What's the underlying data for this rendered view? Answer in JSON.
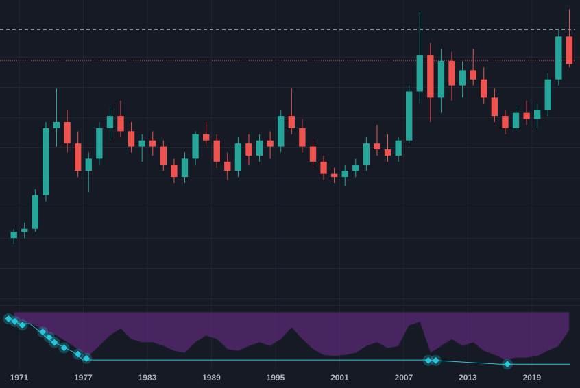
{
  "chart_data": [
    {
      "type": "candlestick",
      "x": [
        1970.5,
        1971.5,
        1972.5,
        1973.5,
        1974.5,
        1975.5,
        1976.5,
        1977.5,
        1978.5,
        1979.5,
        1980.5,
        1981.5,
        1982.5,
        1983.5,
        1984.5,
        1985.5,
        1986.5,
        1987.5,
        1988.5,
        1989.5,
        1990.5,
        1991.5,
        1992.5,
        1993.5,
        1994.5,
        1995.5,
        1996.5,
        1997.5,
        1998.5,
        1999.5,
        2000.5,
        2001.5,
        2002.5,
        2003.5,
        2004.5,
        2005.5,
        2006.5,
        2007.5,
        2008.5,
        2009.5,
        2010.5,
        2011.5,
        2012.5,
        2013.5,
        2014.5,
        2015.5,
        2016.5,
        2017.5,
        2018.5,
        2019.5,
        2020.5,
        2021.5,
        2022.5
      ],
      "open": [
        22,
        24,
        25,
        36,
        58,
        60,
        53,
        44,
        48,
        58,
        62,
        57,
        52,
        54,
        52,
        46,
        42,
        48,
        56,
        54,
        47,
        44,
        53,
        49,
        54,
        52,
        62,
        58,
        52,
        47,
        43,
        42,
        44,
        46,
        53,
        51,
        49,
        54,
        70,
        82,
        68,
        80,
        72,
        77,
        74,
        68,
        62,
        58,
        63,
        61,
        64,
        74,
        88
      ],
      "high": [
        25,
        27,
        38,
        60,
        71,
        64,
        57,
        50,
        60,
        65,
        67,
        60,
        56,
        57,
        54,
        48,
        50,
        57,
        60,
        56,
        50,
        55,
        56,
        56,
        57,
        64,
        71,
        61,
        54,
        49,
        45,
        46,
        48,
        55,
        59,
        56,
        55,
        72,
        96,
        86,
        84,
        83,
        80,
        84,
        78,
        71,
        64,
        65,
        67,
        66,
        76,
        90,
        97
      ],
      "low": [
        20,
        22,
        24,
        34,
        52,
        50,
        42,
        37,
        46,
        54,
        55,
        50,
        47,
        49,
        44,
        40,
        40,
        46,
        52,
        45,
        41,
        42,
        46,
        47,
        48,
        50,
        56,
        50,
        45,
        41,
        40,
        39,
        42,
        44,
        49,
        47,
        47,
        53,
        66,
        60,
        63,
        67,
        68,
        72,
        66,
        60,
        56,
        57,
        59,
        58,
        62,
        72,
        78
      ],
      "close": [
        24,
        25,
        36,
        58,
        60,
        53,
        44,
        48,
        58,
        62,
        57,
        52,
        54,
        52,
        46,
        42,
        48,
        56,
        54,
        47,
        44,
        53,
        49,
        54,
        52,
        62,
        58,
        52,
        47,
        43,
        42,
        44,
        46,
        53,
        51,
        49,
        54,
        70,
        82,
        68,
        80,
        72,
        77,
        74,
        68,
        62,
        58,
        63,
        61,
        64,
        74,
        88,
        79
      ],
      "up_color": "#26a69a",
      "down_color": "#ef5350",
      "xlim": [
        1970,
        2023.5
      ],
      "xticks": [
        1971,
        1977,
        1983,
        1989,
        1995,
        2001,
        2007,
        2013,
        2019
      ],
      "ylim": [
        0,
        100
      ],
      "hlines": [
        {
          "value": 90.3,
          "style": "dashed",
          "color": "#d1d4dc"
        },
        {
          "value": 80.2,
          "style": "dotted",
          "color": "#ef5350"
        }
      ],
      "grid": true
    },
    {
      "type": "area",
      "x": [
        1970.5,
        1971.5,
        1972.5,
        1973.5,
        1974.5,
        1975.5,
        1976.5,
        1977.5,
        1978.5,
        1979.5,
        1980.5,
        1981.5,
        1982.5,
        1983.5,
        1984.5,
        1985.5,
        1986.5,
        1987.5,
        1988.5,
        1989.5,
        1990.5,
        1991.5,
        1992.5,
        1993.5,
        1994.5,
        1995.5,
        1996.5,
        1997.5,
        1998.5,
        1999.5,
        2000.5,
        2001.5,
        2002.5,
        2003.5,
        2004.5,
        2005.5,
        2006.5,
        2007.5,
        2008.5,
        2009.5,
        2010.5,
        2011.5,
        2012.5,
        2013.5,
        2014.5,
        2015.5,
        2016.5,
        2017.5,
        2018.5,
        2019.5,
        2020.5,
        2021.5,
        2022.5
      ],
      "values": [
        87,
        81,
        74,
        61,
        55,
        42,
        29,
        16,
        35,
        55,
        68,
        48,
        42,
        42,
        35,
        26,
        22,
        42,
        55,
        48,
        29,
        26,
        35,
        42,
        35,
        48,
        70,
        48,
        29,
        18,
        16,
        18,
        22,
        35,
        42,
        31,
        35,
        74,
        81,
        22,
        35,
        48,
        35,
        42,
        26,
        18,
        9,
        13,
        13,
        16,
        26,
        35,
        65
      ],
      "color": "#6a2c8a",
      "line": {
        "x": [
          1970,
          1971,
          1972,
          1973,
          1974,
          1975,
          1976,
          1977,
          2009,
          2010,
          2016,
          2022.6
        ],
        "values": [
          87,
          78,
          78,
          61,
          45,
          35,
          25,
          9,
          9,
          8,
          1,
          1
        ],
        "color": "#26c6da"
      },
      "markers": {
        "x": [
          1970,
          1970.6,
          1971.3,
          1973.2,
          1973.8,
          1974.3,
          1975.2,
          1976.5,
          1977.3,
          2009.3,
          2010,
          2016.7
        ],
        "values": [
          87,
          82,
          75,
          62,
          52,
          42,
          32,
          20,
          12,
          8,
          8,
          1
        ],
        "color": "#26c6da"
      },
      "xlim": [
        1970,
        2023.5
      ],
      "ylim": [
        0,
        100
      ]
    }
  ]
}
